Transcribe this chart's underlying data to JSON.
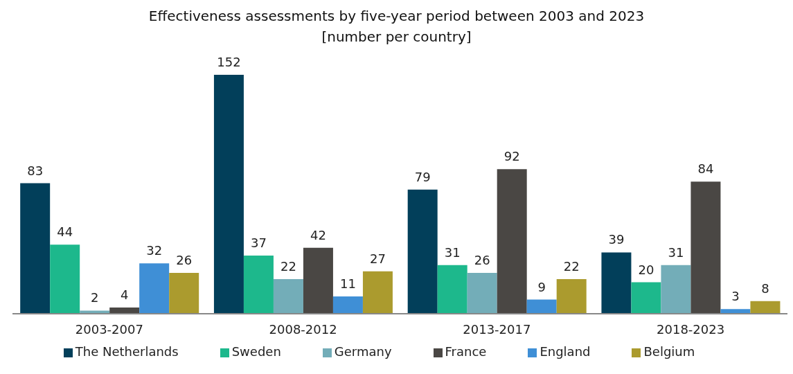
{
  "chart_data": {
    "type": "bar",
    "title": "Effectiveness assessments by five-year period between 2003 and 2023",
    "subtitle": "[number per country]",
    "categories": [
      "2003-2007",
      "2008-2012",
      "2013-2017",
      "2018-2023"
    ],
    "series": [
      {
        "name": "The Netherlands",
        "color": "#023f5a",
        "values": [
          83,
          152,
          79,
          39
        ]
      },
      {
        "name": "Sweden",
        "color": "#1db88c",
        "values": [
          44,
          37,
          31,
          20
        ]
      },
      {
        "name": "Germany",
        "color": "#73adb8",
        "values": [
          2,
          22,
          26,
          31
        ]
      },
      {
        "name": "France",
        "color": "#4a4744",
        "values": [
          4,
          42,
          92,
          84
        ]
      },
      {
        "name": "England",
        "color": "#3f8fd6",
        "values": [
          32,
          11,
          9,
          3
        ]
      },
      {
        "name": "Belgium",
        "color": "#ab9b2e",
        "values": [
          26,
          27,
          22,
          8
        ]
      }
    ],
    "data_labels": true,
    "grid": false,
    "legend": "bottom"
  }
}
